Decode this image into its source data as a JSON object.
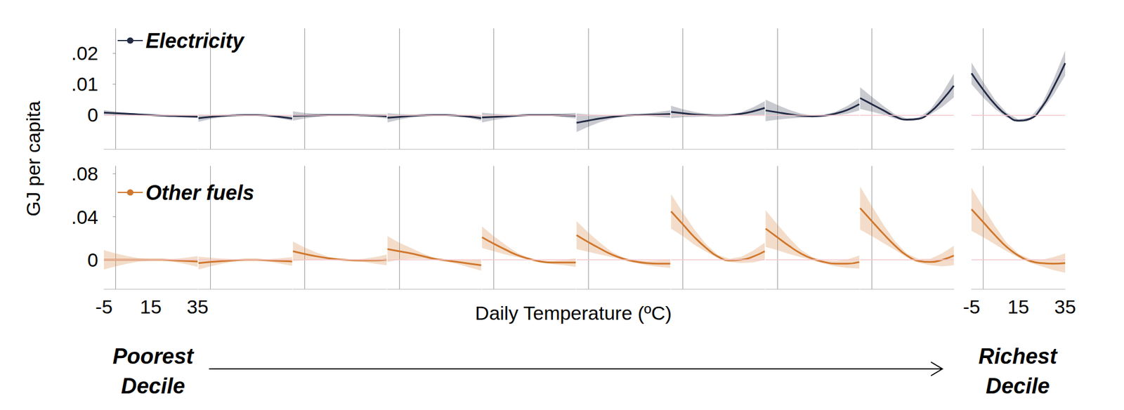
{
  "chart_data": {
    "type": "line",
    "ylabel": "GJ per capita",
    "xlabel": "Daily Temperature (ºC)",
    "annotations": [
      "Poorest\nDecile",
      "Richest\nDecile"
    ],
    "x": [
      -5,
      0,
      5,
      10,
      15,
      20,
      25,
      30,
      35
    ],
    "xlim": [
      -5,
      35
    ],
    "xticks": [
      -5,
      15,
      35
    ],
    "grid": false,
    "rows": [
      {
        "name": "Electricity",
        "color": "#232b45",
        "ylim": [
          -0.011,
          0.028
        ],
        "yticks": [
          0,
          {
            "value": 0.01,
            "label": ".01"
          },
          {
            "value": 0.02,
            "label": ".02"
          }
        ],
        "hline": 0,
        "panels": [
          {
            "values": [
              0.0008,
              0.0006,
              0.0004,
              0.0002,
              0,
              -0.0002,
              -0.0003,
              -0.0004,
              -0.0005
            ],
            "error": [
              0.0008,
              0.0005,
              0.0003,
              0.0002,
              0.0002,
              0.0002,
              0.0003,
              0.0004,
              0.0005
            ]
          },
          {
            "values": [
              -0.001,
              -0.0006,
              -0.0003,
              -0.0001,
              0,
              0,
              -0.0002,
              -0.0006,
              -0.0011
            ],
            "error": [
              0.0012,
              0.0007,
              0.0004,
              0.0002,
              0.0002,
              0.0002,
              0.0003,
              0.0005,
              0.0007
            ]
          },
          {
            "values": [
              -0.0003,
              -0.0002,
              -0.0001,
              0,
              0,
              0,
              -0.0001,
              -0.0002,
              -0.0004
            ],
            "error": [
              0.0015,
              0.0009,
              0.0005,
              0.0003,
              0.0002,
              0.0002,
              0.0003,
              0.0005,
              0.0007
            ]
          },
          {
            "values": [
              -0.0009,
              -0.0006,
              -0.0003,
              -0.0001,
              0,
              0,
              -0.0002,
              -0.0005,
              -0.001
            ],
            "error": [
              0.0015,
              0.0009,
              0.0005,
              0.0003,
              0.0002,
              0.0002,
              0.0003,
              0.0005,
              0.0008
            ]
          },
          {
            "values": [
              -0.0008,
              -0.0006,
              -0.0004,
              -0.0002,
              0,
              0,
              0,
              -0.0001,
              -0.0002
            ],
            "error": [
              0.0016,
              0.001,
              0.0006,
              0.0003,
              0.0002,
              0.0002,
              0.0003,
              0.0006,
              0.0009
            ]
          },
          {
            "values": [
              -0.0025,
              -0.0018,
              -0.0011,
              -0.0006,
              -0.0002,
              0,
              0.0001,
              0.0002,
              0.0003
            ],
            "error": [
              0.003,
              0.002,
              0.0012,
              0.0006,
              0.0003,
              0.0002,
              0.0004,
              0.0008,
              0.0012
            ]
          },
          {
            "values": [
              0.001,
              0.0006,
              0.0002,
              0,
              -0.0001,
              0,
              0.0004,
              0.0012,
              0.0023
            ],
            "error": [
              0.002,
              0.0013,
              0.0008,
              0.0004,
              0.0002,
              0.0002,
              0.0005,
              0.0013,
              0.0022
            ]
          },
          {
            "values": [
              0.0015,
              0.0009,
              0.0003,
              -0.0002,
              -0.0004,
              -0.0002,
              0.0005,
              0.0017,
              0.0035
            ],
            "error": [
              0.0035,
              0.0024,
              0.0014,
              0.0007,
              0.0003,
              0.0003,
              0.0006,
              0.0013,
              0.002
            ]
          },
          {
            "values": [
              0.0055,
              0.0035,
              0.0015,
              -0.0005,
              -0.0015,
              -0.0012,
              0.001,
              0.0048,
              0.0095
            ],
            "error": [
              0.0035,
              0.0024,
              0.0014,
              0.0007,
              0.0004,
              0.0004,
              0.0008,
              0.0022,
              0.0038
            ]
          },
          {
            "values": [
              0.0135,
              0.0082,
              0.0035,
              0,
              -0.0018,
              -0.0012,
              0.0025,
              0.009,
              0.0168
            ],
            "error": [
              0.0035,
              0.0025,
              0.0015,
              0.0008,
              0.0004,
              0.0004,
              0.001,
              0.0025,
              0.004
            ]
          }
        ]
      },
      {
        "name": "Other fuels",
        "color": "#d0772d",
        "ylim": [
          -0.027,
          0.087
        ],
        "yticks": [
          0,
          {
            "value": 0.04,
            "label": ".04"
          },
          {
            "value": 0.08,
            "label": ".08"
          }
        ],
        "hline": 0,
        "panels": [
          {
            "values": [
              0,
              0,
              0,
              0,
              0,
              0,
              -0.0005,
              -0.001,
              -0.0015
            ],
            "error": [
              0.009,
              0.006,
              0.0035,
              0.0015,
              0.0008,
              0.0008,
              0.0015,
              0.003,
              0.005
            ]
          },
          {
            "values": [
              -0.003,
              -0.002,
              -0.0012,
              -0.0005,
              0,
              0,
              -0.0005,
              -0.001,
              -0.0015
            ],
            "error": [
              0.006,
              0.004,
              0.0025,
              0.0012,
              0.0006,
              0.0006,
              0.0012,
              0.0025,
              0.004
            ]
          },
          {
            "values": [
              0.008,
              0.0055,
              0.0033,
              0.0015,
              0.0003,
              -0.0003,
              -0.0005,
              -0.0005,
              0
            ],
            "error": [
              0.009,
              0.006,
              0.0035,
              0.0015,
              0.0008,
              0.0008,
              0.0015,
              0.003,
              0.005
            ]
          },
          {
            "values": [
              0.01,
              0.008,
              0.006,
              0.0035,
              0.001,
              -0.0005,
              -0.002,
              -0.0035,
              -0.005
            ],
            "error": [
              0.012,
              0.008,
              0.005,
              0.0025,
              0.001,
              0.001,
              0.002,
              0.0035,
              0.005
            ]
          },
          {
            "values": [
              0.021,
              0.015,
              0.0095,
              0.0045,
              0.001,
              -0.0015,
              -0.0025,
              -0.0025,
              -0.0025
            ],
            "error": [
              0.01,
              0.007,
              0.0045,
              0.002,
              0.001,
              0.001,
              0.0015,
              0.0025,
              0.004
            ]
          },
          {
            "values": [
              0.023,
              0.0165,
              0.0105,
              0.005,
              0.001,
              -0.0015,
              -0.003,
              -0.0035,
              -0.0035
            ],
            "error": [
              0.013,
              0.009,
              0.0055,
              0.0025,
              0.0012,
              0.0012,
              0.002,
              0.003,
              0.004
            ]
          },
          {
            "values": [
              0.045,
              0.033,
              0.021,
              0.011,
              0.003,
              -0.0005,
              0,
              0.003,
              0.008
            ],
            "error": [
              0.016,
              0.011,
              0.007,
              0.0035,
              0.0015,
              0.0015,
              0.003,
              0.0055,
              0.008
            ]
          },
          {
            "values": [
              0.029,
              0.021,
              0.013,
              0.006,
              0.001,
              -0.002,
              -0.0035,
              -0.0035,
              -0.002
            ],
            "error": [
              0.017,
              0.012,
              0.0075,
              0.0035,
              0.0015,
              0.0015,
              0.0025,
              0.004,
              0.006
            ]
          },
          {
            "values": [
              0.048,
              0.036,
              0.024,
              0.013,
              0.004,
              -0.001,
              -0.002,
              0,
              0.004
            ],
            "error": [
              0.02,
              0.014,
              0.0085,
              0.004,
              0.0018,
              0.0018,
              0.003,
              0.006,
              0.009
            ]
          },
          {
            "values": [
              0.047,
              0.035,
              0.023,
              0.012,
              0.004,
              -0.001,
              -0.003,
              -0.0035,
              -0.003
            ],
            "error": [
              0.02,
              0.014,
              0.0085,
              0.004,
              0.0018,
              0.0018,
              0.003,
              0.006,
              0.009
            ]
          }
        ]
      }
    ]
  }
}
